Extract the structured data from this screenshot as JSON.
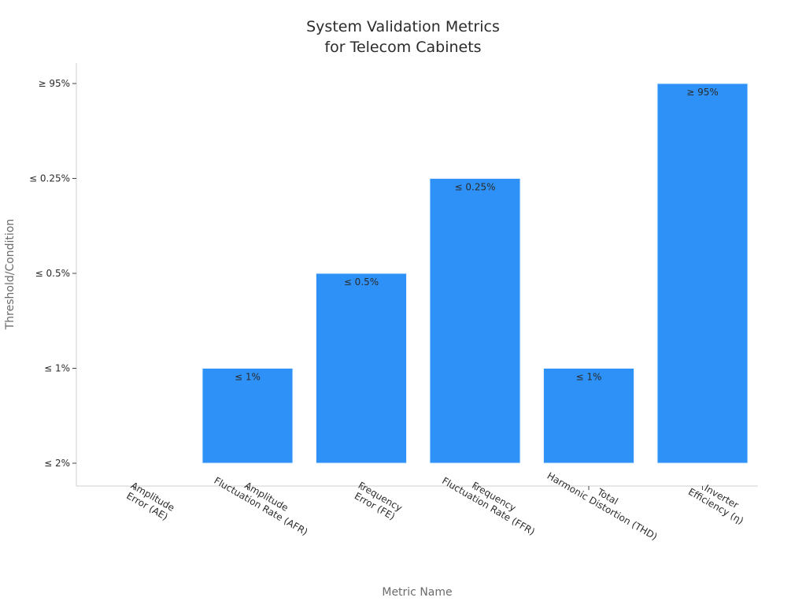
{
  "chart_data": {
    "type": "bar",
    "title": [
      "System Validation Metrics",
      "for Telecom Cabinets"
    ],
    "xlabel": "Metric Name",
    "ylabel": "Threshold/Condition",
    "y_categories": [
      "≤ 2%",
      "≤ 1%",
      "≤ 0.5%",
      "≤ 0.25%",
      "≥ 95%"
    ],
    "categories": [
      [
        "Amplitude",
        "Error (AE)"
      ],
      [
        "Amplitude",
        "Fluctuation Rate (AFR)"
      ],
      [
        "Frequency",
        "Error (FE)"
      ],
      [
        "Frequency",
        "Fluctuation Rate (FFR)"
      ],
      [
        "Total",
        "Harmonic Distortion (THD)"
      ],
      [
        "Inverter",
        "Efficiency (η)"
      ]
    ],
    "values": [
      "≤ 2%",
      "≤ 1%",
      "≤ 0.5%",
      "≤ 0.25%",
      "≤ 1%",
      "≥ 95%"
    ],
    "bar_labels": [
      "",
      "≤ 1%",
      "≤ 0.5%",
      "≤ 0.25%",
      "≤ 1%",
      "≥ 95%"
    ],
    "colors": {
      "bar": "#2d91f8",
      "bar_edge": "#e8f2ff"
    },
    "grid": false,
    "legend": "none"
  }
}
